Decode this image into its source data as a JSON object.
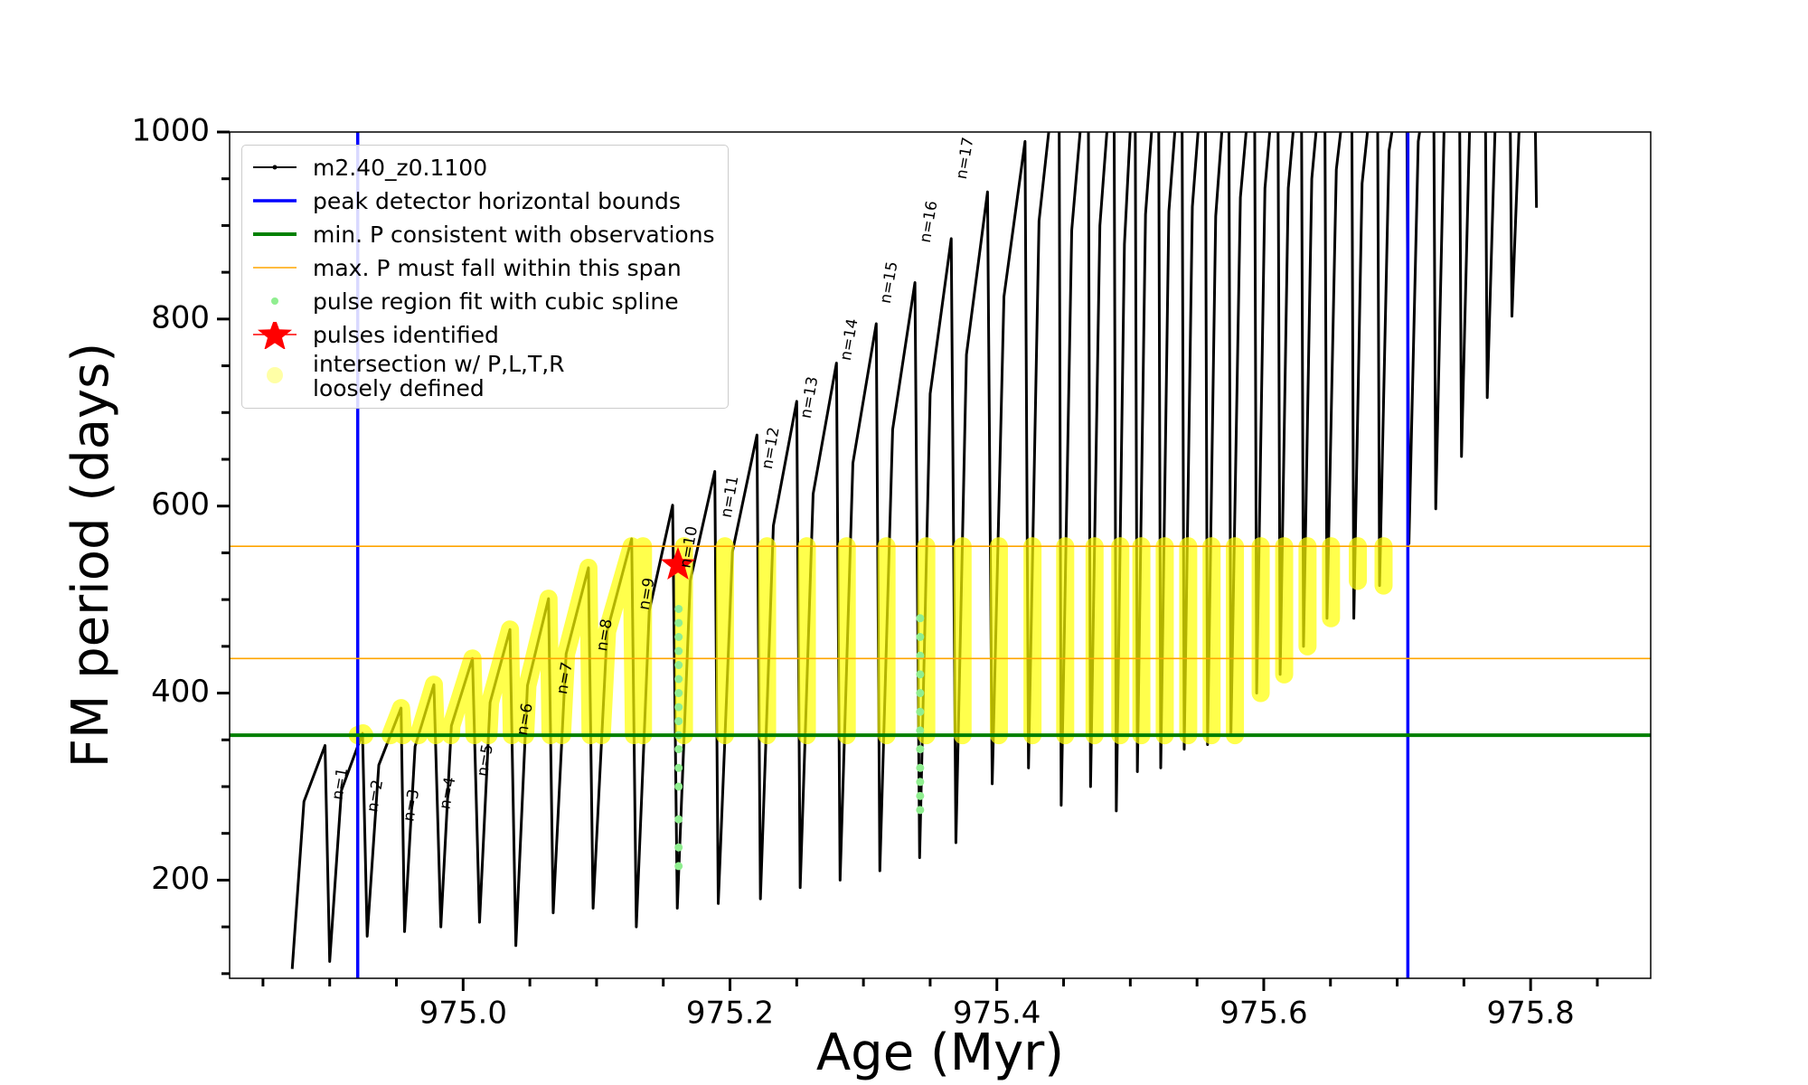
{
  "chart_data": {
    "type": "line",
    "xlabel": "Age (Myr)",
    "ylabel": "FM period (days)",
    "xlim": [
      974.825,
      975.89
    ],
    "ylim": [
      95,
      1000
    ],
    "xticks": [
      {
        "value": 975.0,
        "label": "975.0"
      },
      975.2,
      975.4,
      975.6,
      975.8
    ],
    "xminorticks": [
      974.85,
      974.9,
      974.95,
      975.05,
      975.1,
      975.15,
      975.25,
      975.3,
      975.35,
      975.45,
      975.5,
      975.55,
      975.65,
      975.7,
      975.75,
      975.85
    ],
    "yticks": [
      200,
      400,
      600,
      800,
      1000
    ],
    "yminorticks": [
      100,
      150,
      250,
      300,
      350,
      450,
      500,
      550,
      650,
      700,
      750,
      850,
      900,
      950
    ],
    "legend": "upper left",
    "series": [
      {
        "name": "m2.40_z0.1100",
        "kind": "line",
        "color": "#000000",
        "linewidth": 3,
        "x": [
          974.8719,
          974.8807,
          974.8965,
          974.9,
          974.9088,
          974.9246,
          974.9281,
          974.9368,
          974.9535,
          974.9561,
          974.964,
          974.9781,
          974.9833,
          974.9912,
          975.007,
          975.0123,
          975.0202,
          975.0351,
          975.0395,
          975.0482,
          975.064,
          975.0675,
          975.0772,
          975.0939,
          975.0974,
          975.1079,
          975.1263,
          975.1298,
          975.1395,
          975.157,
          975.1605,
          975.1702,
          975.1886,
          975.1912,
          975.2018,
          975.2202,
          975.2228,
          975.2325,
          975.25,
          975.2526,
          975.2623,
          975.2798,
          975.2825,
          975.2921,
          975.3096,
          975.3123,
          975.3219,
          975.3386,
          975.3421,
          975.35,
          975.3658,
          975.3693,
          975.3772,
          975.393,
          975.3965,
          975.4053,
          975.4211,
          975.4237,
          975.4316,
          975.4465,
          975.4482,
          975.4561,
          975.4684,
          975.4702,
          975.4772,
          975.4877,
          975.4895,
          975.4956,
          975.5035,
          975.5053,
          975.5114,
          975.5211,
          975.5228,
          975.5289,
          975.5386,
          975.5404,
          975.5465,
          975.5561,
          975.5579,
          975.564,
          975.5737,
          975.5754,
          975.5825,
          975.593,
          975.5947,
          975.6009,
          975.6105,
          975.6123,
          975.6184,
          975.6281,
          975.6298,
          975.636,
          975.6456,
          975.6474,
          975.6544,
          975.6658,
          975.6675,
          975.6737,
          975.6851,
          975.6868,
          975.6939,
          975.707,
          975.7088,
          975.7158,
          975.7272,
          975.7289,
          975.7351,
          975.7465,
          975.7482,
          975.7544,
          975.7658,
          975.7675,
          975.7737,
          975.7842,
          975.786,
          975.7921,
          975.8026,
          975.8044
        ],
        "values": [
          105,
          284,
          344,
          113,
          296,
          357,
          140,
          323,
          384,
          145,
          343,
          409,
          150,
          365,
          437,
          155,
          390,
          468,
          130,
          408,
          501,
          165,
          442,
          534,
          170,
          466,
          565,
          150,
          488,
          601,
          170,
          520,
          637,
          175,
          551,
          676,
          180,
          579,
          712,
          192,
          613,
          753,
          200,
          646,
          795,
          210,
          682,
          839,
          224,
          720,
          886,
          240,
          762,
          936,
          303,
          824,
          990,
          320,
          905,
          1100,
          280,
          895,
          1100,
          300,
          900,
          1100,
          274,
          880,
          1100,
          316,
          912,
          1100,
          320,
          915,
          1100,
          340,
          920,
          1100,
          345,
          910,
          1100,
          355,
          930,
          1100,
          400,
          940,
          1100,
          420,
          940,
          1100,
          450,
          950,
          1100,
          480,
          960,
          1100,
          480,
          945,
          1100,
          515,
          980,
          1100,
          560,
          990,
          1100,
          597,
          1000,
          1100,
          653,
          1010,
          1100,
          716,
          1020,
          1100,
          803,
          1030,
          1100,
          919
        ]
      },
      {
        "name": "intersection w/ P,L,T,R\nloosely defined",
        "kind": "band",
        "color": "#ffff00",
        "x": [
          974.921,
          974.925,
          974.926,
          null,
          974.9456,
          974.9535,
          974.955,
          null,
          974.9667,
          974.9781,
          974.9795,
          null,
          974.9909,
          974.9912,
          975.007,
          975.0085,
          null,
          975.019,
          975.0202,
          975.0351,
          975.0365,
          null,
          975.0465,
          975.0482,
          975.064,
          975.0655,
          null,
          975.0741,
          975.0772,
          975.0939,
          975.0955,
          null,
          975.1039,
          975.1079,
          975.1263,
          975.128,
          null,
          975.1348,
          975.1348,
          null,
          975.1655,
          975.1655,
          null,
          975.1962,
          975.1962,
          null,
          975.2278,
          975.2278,
          null,
          975.2576,
          975.2576,
          null,
          975.2875,
          975.2875,
          null,
          975.3173,
          975.3173,
          null,
          975.3471,
          975.3471,
          null,
          975.3743,
          975.3743,
          null,
          975.4015,
          975.4015,
          null,
          975.4267,
          975.4267,
          null,
          975.4512,
          975.4512,
          null,
          975.4732,
          975.4732,
          null,
          975.4925,
          975.4925,
          null,
          975.5083,
          975.5083,
          null,
          975.5258,
          975.5258,
          null,
          975.5434,
          975.5434,
          null,
          975.5609,
          975.5609,
          null,
          975.5784,
          975.5784,
          null,
          975.5977,
          975.5977,
          null,
          975.6153,
          975.6153,
          null,
          975.6328,
          975.6328,
          null,
          975.6504,
          975.6504,
          null,
          975.6705,
          975.6705,
          null,
          975.6898,
          975.6898
        ],
        "values": [
          355,
          357,
          355,
          null,
          355,
          384,
          355,
          null,
          355,
          409,
          355,
          null,
          355,
          365,
          437,
          355,
          null,
          355,
          390,
          468,
          355,
          null,
          355,
          408,
          501,
          355,
          null,
          355,
          442,
          534,
          355,
          null,
          355,
          466,
          557,
          355,
          null,
          355,
          557,
          null,
          355,
          557,
          null,
          355,
          557,
          null,
          355,
          557,
          null,
          355,
          557,
          null,
          355,
          557,
          null,
          355,
          557,
          null,
          355,
          557,
          null,
          355,
          557,
          null,
          355,
          557,
          null,
          355,
          557,
          null,
          355,
          557,
          null,
          355,
          557,
          null,
          355,
          557,
          null,
          355,
          557,
          null,
          355,
          557,
          null,
          355,
          557,
          null,
          355,
          557,
          null,
          355,
          557,
          null,
          400,
          557,
          null,
          420,
          557,
          null,
          450,
          557,
          null,
          480,
          557,
          null,
          520,
          557,
          null,
          515,
          557
        ]
      },
      {
        "name": "pulse region fit with cubic spline",
        "kind": "scatter",
        "color": "#90ee90",
        "x": [
          975.1615,
          975.1615,
          975.1615,
          975.1615,
          975.1615,
          975.1615,
          975.1615,
          975.1615,
          975.1615,
          975.1615,
          975.1615,
          975.1615,
          975.1615,
          975.1615,
          975.1615,
          975.1615,
          975.3425,
          975.3425,
          975.3425,
          975.3425,
          975.3425,
          975.3425,
          975.3425,
          975.3425,
          975.3425,
          975.3425,
          975.3425,
          975.3425
        ],
        "values": [
          215,
          235,
          265,
          300,
          320,
          340,
          355,
          370,
          385,
          400,
          415,
          430,
          445,
          460,
          475,
          490,
          275,
          290,
          305,
          320,
          340,
          360,
          380,
          400,
          420,
          440,
          460,
          480
        ]
      },
      {
        "name": "peak detector horizontal bounds",
        "kind": "vline",
        "color": "#0000ff",
        "linewidth": 3.5,
        "values": [
          974.921,
          975.708
        ]
      },
      {
        "name": "min. P consistent with observations",
        "kind": "hline",
        "color": "#008000",
        "linewidth": 4,
        "values": [
          355
        ]
      },
      {
        "name": "max. P must fall within this span",
        "kind": "hline",
        "color": "#ffa500",
        "linewidth": 1.6,
        "values": [
          437,
          557
        ]
      },
      {
        "name": "pulses identified",
        "kind": "star",
        "color": "#ff0000",
        "x": [
          975.161
        ],
        "values": [
          537
        ]
      }
    ],
    "legend_order": [
      0,
      3,
      4,
      5,
      2,
      6,
      1
    ],
    "annotations": [
      {
        "text": "n=1",
        "x": 974.9079,
        "y": 303
      },
      {
        "text": "n=2",
        "x": 974.9342,
        "y": 290
      },
      {
        "text": "n=3",
        "x": 974.9614,
        "y": 280
      },
      {
        "text": "n=4",
        "x": 974.9886,
        "y": 293
      },
      {
        "text": "n=5",
        "x": 975.0167,
        "y": 328
      },
      {
        "text": "n=6",
        "x": 975.0465,
        "y": 372
      },
      {
        "text": "n=7",
        "x": 975.0763,
        "y": 416
      },
      {
        "text": "n=8",
        "x": 975.1061,
        "y": 462
      },
      {
        "text": "n=9",
        "x": 975.1377,
        "y": 506
      },
      {
        "text": "n=10",
        "x": 975.1693,
        "y": 556
      },
      {
        "text": "n=11",
        "x": 975.2,
        "y": 610
      },
      {
        "text": "n=12",
        "x": 975.2307,
        "y": 662
      },
      {
        "text": "n=13",
        "x": 975.2596,
        "y": 716
      },
      {
        "text": "n=14",
        "x": 975.2895,
        "y": 778
      },
      {
        "text": "n=15",
        "x": 975.3193,
        "y": 839
      },
      {
        "text": "n=16",
        "x": 975.3491,
        "y": 904
      },
      {
        "text": "n=17",
        "x": 975.3763,
        "y": 972
      }
    ]
  }
}
